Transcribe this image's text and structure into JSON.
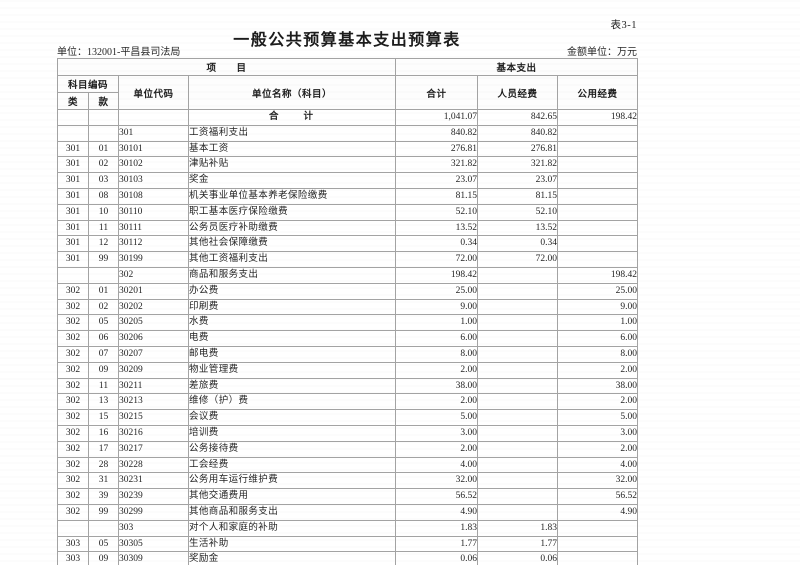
{
  "page": {
    "sheet_no": "表3-1",
    "title": "一般公共预算基本支出预算表",
    "unit_label": "单位：132001-平昌县司法局",
    "amount_unit_label": "金额单位：万元"
  },
  "colors": {
    "text": "#222222",
    "border": "#a3a3a3",
    "paper": "#ffffff"
  },
  "table": {
    "header": {
      "project_group": "项　　目",
      "basic_expenditure_group": "基本支出",
      "subject_code": "科目编码",
      "cls": "类",
      "item": "款",
      "unit_code": "单位代码",
      "unit_name": "单位名称（科目）",
      "total": "合计",
      "personnel_funds": "人员经费",
      "public_funds": "公用经费"
    },
    "rows": [
      {
        "cls": "",
        "item": "",
        "code": "",
        "name": "合　　计",
        "total": "1,041.07",
        "personnel": "842.65",
        "public": "198.42",
        "is_total": true
      },
      {
        "cls": "",
        "item": "",
        "code": "301",
        "name": "工资福利支出",
        "total": "840.82",
        "personnel": "840.82",
        "public": ""
      },
      {
        "cls": "301",
        "item": "01",
        "code": "30101",
        "name": "基本工资",
        "total": "276.81",
        "personnel": "276.81",
        "public": ""
      },
      {
        "cls": "301",
        "item": "02",
        "code": "30102",
        "name": "津贴补贴",
        "total": "321.82",
        "personnel": "321.82",
        "public": ""
      },
      {
        "cls": "301",
        "item": "03",
        "code": "30103",
        "name": "奖金",
        "total": "23.07",
        "personnel": "23.07",
        "public": ""
      },
      {
        "cls": "301",
        "item": "08",
        "code": "30108",
        "name": "机关事业单位基本养老保险缴费",
        "total": "81.15",
        "personnel": "81.15",
        "public": ""
      },
      {
        "cls": "301",
        "item": "10",
        "code": "30110",
        "name": "职工基本医疗保险缴费",
        "total": "52.10",
        "personnel": "52.10",
        "public": ""
      },
      {
        "cls": "301",
        "item": "11",
        "code": "30111",
        "name": "公务员医疗补助缴费",
        "total": "13.52",
        "personnel": "13.52",
        "public": ""
      },
      {
        "cls": "301",
        "item": "12",
        "code": "30112",
        "name": "其他社会保障缴费",
        "total": "0.34",
        "personnel": "0.34",
        "public": ""
      },
      {
        "cls": "301",
        "item": "99",
        "code": "30199",
        "name": "其他工资福利支出",
        "total": "72.00",
        "personnel": "72.00",
        "public": ""
      },
      {
        "cls": "",
        "item": "",
        "code": "302",
        "name": "商品和服务支出",
        "total": "198.42",
        "personnel": "",
        "public": "198.42"
      },
      {
        "cls": "302",
        "item": "01",
        "code": "30201",
        "name": "办公费",
        "total": "25.00",
        "personnel": "",
        "public": "25.00"
      },
      {
        "cls": "302",
        "item": "02",
        "code": "30202",
        "name": "印刷费",
        "total": "9.00",
        "personnel": "",
        "public": "9.00"
      },
      {
        "cls": "302",
        "item": "05",
        "code": "30205",
        "name": "水费",
        "total": "1.00",
        "personnel": "",
        "public": "1.00"
      },
      {
        "cls": "302",
        "item": "06",
        "code": "30206",
        "name": "电费",
        "total": "6.00",
        "personnel": "",
        "public": "6.00"
      },
      {
        "cls": "302",
        "item": "07",
        "code": "30207",
        "name": "邮电费",
        "total": "8.00",
        "personnel": "",
        "public": "8.00"
      },
      {
        "cls": "302",
        "item": "09",
        "code": "30209",
        "name": "物业管理费",
        "total": "2.00",
        "personnel": "",
        "public": "2.00"
      },
      {
        "cls": "302",
        "item": "11",
        "code": "30211",
        "name": "差旅费",
        "total": "38.00",
        "personnel": "",
        "public": "38.00"
      },
      {
        "cls": "302",
        "item": "13",
        "code": "30213",
        "name": "维修（护）费",
        "total": "2.00",
        "personnel": "",
        "public": "2.00"
      },
      {
        "cls": "302",
        "item": "15",
        "code": "30215",
        "name": "会议费",
        "total": "5.00",
        "personnel": "",
        "public": "5.00"
      },
      {
        "cls": "302",
        "item": "16",
        "code": "30216",
        "name": "培训费",
        "total": "3.00",
        "personnel": "",
        "public": "3.00"
      },
      {
        "cls": "302",
        "item": "17",
        "code": "30217",
        "name": "公务接待费",
        "total": "2.00",
        "personnel": "",
        "public": "2.00"
      },
      {
        "cls": "302",
        "item": "28",
        "code": "30228",
        "name": "工会经费",
        "total": "4.00",
        "personnel": "",
        "public": "4.00"
      },
      {
        "cls": "302",
        "item": "31",
        "code": "30231",
        "name": "公务用车运行维护费",
        "total": "32.00",
        "personnel": "",
        "public": "32.00"
      },
      {
        "cls": "302",
        "item": "39",
        "code": "30239",
        "name": "其他交通费用",
        "total": "56.52",
        "personnel": "",
        "public": "56.52"
      },
      {
        "cls": "302",
        "item": "99",
        "code": "30299",
        "name": "其他商品和服务支出",
        "total": "4.90",
        "personnel": "",
        "public": "4.90"
      },
      {
        "cls": "",
        "item": "",
        "code": "303",
        "name": "对个人和家庭的补助",
        "total": "1.83",
        "personnel": "1.83",
        "public": ""
      },
      {
        "cls": "303",
        "item": "05",
        "code": "30305",
        "name": "生活补助",
        "total": "1.77",
        "personnel": "1.77",
        "public": ""
      },
      {
        "cls": "303",
        "item": "09",
        "code": "30309",
        "name": "奖励金",
        "total": "0.06",
        "personnel": "0.06",
        "public": ""
      }
    ]
  }
}
